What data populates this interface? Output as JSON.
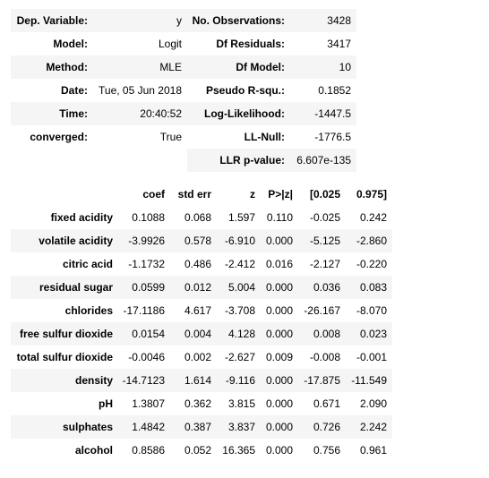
{
  "info_table": {
    "rows": [
      [
        "Dep. Variable:",
        "y",
        "No. Observations:",
        "3428"
      ],
      [
        "Model:",
        "Logit",
        "Df Residuals:",
        "3417"
      ],
      [
        "Method:",
        "MLE",
        "Df Model:",
        "10"
      ],
      [
        "Date:",
        "Tue, 05 Jun 2018",
        "Pseudo R-squ.:",
        "0.1852"
      ],
      [
        "Time:",
        "20:40:52",
        "Log-Likelihood:",
        "-1447.5"
      ],
      [
        "converged:",
        "True",
        "LL-Null:",
        "-1776.5"
      ],
      [
        "LLR p-value:",
        "6.607e-135"
      ]
    ]
  },
  "coef_table": {
    "header": [
      "coef",
      "std err",
      "z",
      "P>|z|",
      "[0.025",
      "0.975]"
    ],
    "rows": [
      [
        "fixed acidity",
        "0.1088",
        "0.068",
        "1.597",
        "0.110",
        "-0.025",
        "0.242"
      ],
      [
        "volatile acidity",
        "-3.9926",
        "0.578",
        "-6.910",
        "0.000",
        "-5.125",
        "-2.860"
      ],
      [
        "citric acid",
        "-1.1732",
        "0.486",
        "-2.412",
        "0.016",
        "-2.127",
        "-0.220"
      ],
      [
        "residual sugar",
        "0.0599",
        "0.012",
        "5.004",
        "0.000",
        "0.036",
        "0.083"
      ],
      [
        "chlorides",
        "-17.1186",
        "4.617",
        "-3.708",
        "0.000",
        "-26.167",
        "-8.070"
      ],
      [
        "free sulfur dioxide",
        "0.0154",
        "0.004",
        "4.128",
        "0.000",
        "0.008",
        "0.023"
      ],
      [
        "total sulfur dioxide",
        "-0.0046",
        "0.002",
        "-2.627",
        "0.009",
        "-0.008",
        "-0.001"
      ],
      [
        "density",
        "-14.7123",
        "1.614",
        "-9.116",
        "0.000",
        "-17.875",
        "-11.549"
      ],
      [
        "pH",
        "1.3807",
        "0.362",
        "3.815",
        "0.000",
        "0.671",
        "2.090"
      ],
      [
        "sulphates",
        "1.4842",
        "0.387",
        "3.837",
        "0.000",
        "0.726",
        "2.242"
      ],
      [
        "alcohol",
        "0.8586",
        "0.052",
        "16.365",
        "0.000",
        "0.756",
        "0.961"
      ]
    ]
  }
}
